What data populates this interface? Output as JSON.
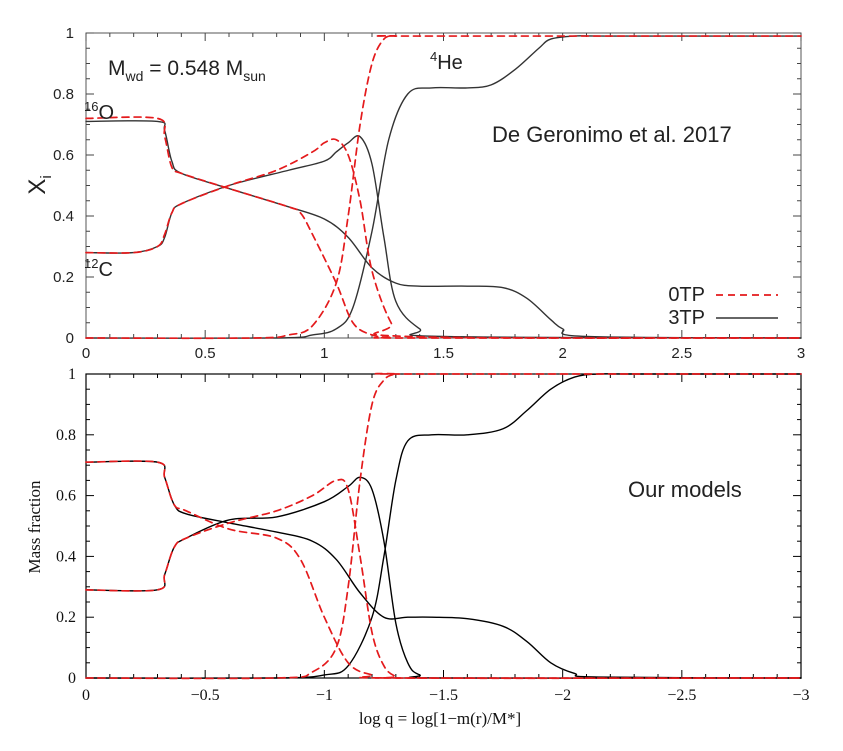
{
  "chart_data": [
    {
      "type": "line",
      "panel": "top",
      "source_label": "De Geronimo et al. 2017",
      "mass_label": {
        "prefix": "M",
        "prefix_sub": "wd",
        "mid": " = 0.548 M",
        "mid_sub": "sun"
      },
      "ylabel": {
        "main": "X",
        "sub": "i"
      },
      "xlim": [
        0,
        3
      ],
      "ylim": [
        0,
        1
      ],
      "x_ticks": [
        0,
        0.5,
        1,
        1.5,
        2,
        2.5,
        3
      ],
      "x_tick_labels": [
        "0",
        "0.5",
        "1",
        "1.5",
        "2",
        "2.5",
        "3"
      ],
      "y_ticks": [
        0,
        0.2,
        0.4,
        0.6,
        0.8,
        1
      ],
      "y_tick_labels": [
        "0",
        "0.2",
        "0.4",
        "0.6",
        "0.8",
        "1"
      ],
      "legend": {
        "position": "bottom-right",
        "entries": [
          {
            "label": "0TP",
            "style": "dashed",
            "color": "#e41a1c"
          },
          {
            "label": "3TP",
            "style": "solid",
            "color": "#333333"
          }
        ]
      },
      "species_labels": [
        {
          "sup": "16",
          "base": "O"
        },
        {
          "sup": "12",
          "base": "C"
        },
        {
          "sup": "4",
          "base": "He"
        }
      ],
      "series": [
        {
          "name": "O16 3TP",
          "style": "solid",
          "color": "#333333",
          "x": [
            0,
            0.3,
            0.33,
            0.36,
            0.4,
            0.6,
            0.85,
            1.0,
            1.1,
            1.2,
            1.3,
            1.4,
            1.6,
            1.75,
            1.85,
            1.95,
            2.0,
            2.1,
            3.0
          ],
          "y": [
            0.71,
            0.71,
            0.68,
            0.58,
            0.54,
            0.49,
            0.43,
            0.39,
            0.33,
            0.23,
            0.18,
            0.17,
            0.17,
            0.165,
            0.13,
            0.06,
            0.03,
            0.005,
            0
          ]
        },
        {
          "name": "C12 3TP",
          "style": "solid",
          "color": "#333333",
          "x": [
            0,
            0.2,
            0.3,
            0.33,
            0.36,
            0.4,
            0.6,
            0.85,
            1.0,
            1.05,
            1.1,
            1.15,
            1.2,
            1.25,
            1.3,
            1.4,
            1.5,
            3.0
          ],
          "y": [
            0.28,
            0.28,
            0.3,
            0.33,
            0.41,
            0.44,
            0.5,
            0.55,
            0.58,
            0.61,
            0.64,
            0.66,
            0.57,
            0.33,
            0.12,
            0.03,
            0.005,
            0
          ]
        },
        {
          "name": "He4 3TP",
          "style": "solid",
          "color": "#333333",
          "x": [
            0,
            0.8,
            0.95,
            1.05,
            1.12,
            1.2,
            1.27,
            1.35,
            1.45,
            1.6,
            1.7,
            1.8,
            1.9,
            1.95,
            2.05,
            2.2,
            3.0
          ],
          "y": [
            0,
            0,
            0.01,
            0.03,
            0.1,
            0.35,
            0.65,
            0.8,
            0.82,
            0.82,
            0.83,
            0.88,
            0.95,
            0.98,
            0.99,
            0.99,
            0.99
          ]
        },
        {
          "name": "O16 0TP",
          "style": "dashed",
          "color": "#e41a1c",
          "x": [
            0,
            0.3,
            0.33,
            0.36,
            0.4,
            0.6,
            0.85,
            0.9,
            0.95,
            1.05,
            1.12,
            1.2,
            1.28,
            1.35,
            3.0
          ],
          "y": [
            0.72,
            0.72,
            0.66,
            0.56,
            0.54,
            0.49,
            0.43,
            0.41,
            0.34,
            0.18,
            0.05,
            0.01,
            0.002,
            0,
            0
          ]
        },
        {
          "name": "C12 0TP",
          "style": "dashed",
          "color": "#e41a1c",
          "x": [
            0,
            0.2,
            0.3,
            0.33,
            0.36,
            0.4,
            0.6,
            0.8,
            0.95,
            1.0,
            1.05,
            1.1,
            1.15,
            1.2,
            1.28,
            1.35,
            3.0
          ],
          "y": [
            0.28,
            0.28,
            0.3,
            0.34,
            0.41,
            0.44,
            0.5,
            0.55,
            0.61,
            0.64,
            0.65,
            0.6,
            0.45,
            0.22,
            0.05,
            0.005,
            0
          ]
        },
        {
          "name": "He4 0TP",
          "style": "dashed",
          "color": "#e41a1c",
          "x": [
            0,
            0.7,
            0.85,
            0.95,
            1.05,
            1.1,
            1.15,
            1.2,
            1.25,
            1.3,
            1.35,
            3.0
          ],
          "y": [
            0,
            0,
            0.01,
            0.04,
            0.18,
            0.4,
            0.7,
            0.9,
            0.98,
            0.99,
            0.99,
            0.99
          ]
        }
      ]
    },
    {
      "type": "line",
      "panel": "bottom",
      "source_label": "Our models",
      "xlabel": "log q = log[1−m(r)/M*]",
      "ylabel": "Mass fraction",
      "xlim": [
        0,
        -3
      ],
      "ylim": [
        0,
        1
      ],
      "x_ticks": [
        0,
        -0.5,
        -1,
        -1.5,
        -2,
        -2.5,
        -3
      ],
      "x_tick_labels": [
        "0",
        "−0.5",
        "−1",
        "−1.5",
        "−2",
        "−2.5",
        "−3"
      ],
      "y_ticks": [
        0,
        0.2,
        0.4,
        0.6,
        0.8,
        1
      ],
      "y_tick_labels": [
        "0",
        "0.2",
        "0.4",
        "0.6",
        "0.8",
        "1"
      ],
      "series": [
        {
          "name": "O16 3TP",
          "style": "solid",
          "color": "#000000",
          "x": [
            0,
            -0.3,
            -0.33,
            -0.37,
            -0.42,
            -0.6,
            -0.8,
            -0.95,
            -1.05,
            -1.15,
            -1.25,
            -1.35,
            -1.45,
            -1.6,
            -1.75,
            -1.85,
            -1.95,
            -2.05,
            -2.15,
            -3.0
          ],
          "y": [
            0.71,
            0.71,
            0.66,
            0.57,
            0.54,
            0.51,
            0.48,
            0.45,
            0.39,
            0.28,
            0.2,
            0.2,
            0.2,
            0.195,
            0.17,
            0.12,
            0.05,
            0.015,
            0.003,
            0
          ]
        },
        {
          "name": "C12 3TP",
          "style": "solid",
          "color": "#000000",
          "x": [
            0,
            -0.3,
            -0.33,
            -0.37,
            -0.42,
            -0.6,
            -0.8,
            -1.0,
            -1.1,
            -1.15,
            -1.2,
            -1.25,
            -1.3,
            -1.35,
            -1.4,
            -1.5,
            -3.0
          ],
          "y": [
            0.29,
            0.29,
            0.34,
            0.43,
            0.46,
            0.52,
            0.53,
            0.58,
            0.63,
            0.66,
            0.62,
            0.45,
            0.18,
            0.05,
            0.01,
            0,
            0
          ]
        },
        {
          "name": "He4 3TP",
          "style": "solid",
          "color": "#000000",
          "x": [
            0,
            -0.8,
            -1.0,
            -1.1,
            -1.2,
            -1.25,
            -1.3,
            -1.35,
            -1.45,
            -1.6,
            -1.75,
            -1.85,
            -1.95,
            -2.05,
            -2.15,
            -2.3,
            -3.0
          ],
          "y": [
            0,
            0,
            0.01,
            0.04,
            0.2,
            0.4,
            0.65,
            0.78,
            0.8,
            0.8,
            0.82,
            0.88,
            0.95,
            0.99,
            1,
            1,
            1
          ]
        },
        {
          "name": "O16 0TP",
          "style": "dashed",
          "color": "#e41a1c",
          "x": [
            0,
            -0.3,
            -0.33,
            -0.37,
            -0.42,
            -0.6,
            -0.8,
            -0.9,
            -1.0,
            -1.1,
            -1.2,
            -1.3,
            -3.0
          ],
          "y": [
            0.71,
            0.71,
            0.66,
            0.57,
            0.55,
            0.49,
            0.46,
            0.39,
            0.2,
            0.05,
            0.01,
            0,
            0
          ]
        },
        {
          "name": "C12 0TP",
          "style": "dashed",
          "color": "#e41a1c",
          "x": [
            0,
            -0.3,
            -0.33,
            -0.37,
            -0.42,
            -0.6,
            -0.8,
            -0.95,
            -1.05,
            -1.1,
            -1.15,
            -1.2,
            -1.25,
            -1.3,
            -1.35,
            -3.0
          ],
          "y": [
            0.29,
            0.29,
            0.34,
            0.43,
            0.46,
            0.51,
            0.55,
            0.6,
            0.65,
            0.62,
            0.4,
            0.15,
            0.04,
            0.005,
            0,
            0
          ]
        },
        {
          "name": "He4 0TP",
          "style": "dashed",
          "color": "#e41a1c",
          "x": [
            0,
            -0.8,
            -0.95,
            -1.05,
            -1.1,
            -1.15,
            -1.2,
            -1.25,
            -1.3,
            -1.35,
            -3.0
          ],
          "y": [
            0,
            0,
            0.02,
            0.1,
            0.3,
            0.65,
            0.9,
            0.98,
            1,
            1,
            1
          ]
        }
      ]
    }
  ]
}
